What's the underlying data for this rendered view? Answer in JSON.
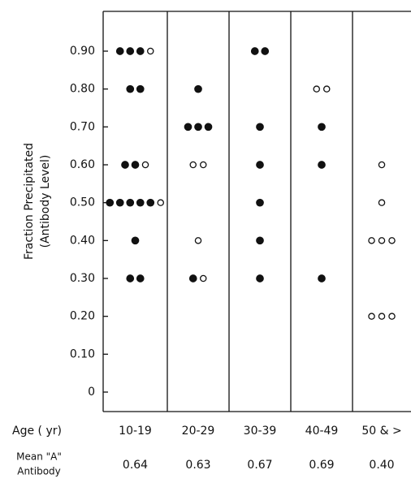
{
  "chart_data": {
    "type": "dot",
    "y_label": [
      "Fraction Precipitated",
      "(Antibody Level)"
    ],
    "x_label": "Age ( yr)",
    "categories": [
      "10-19",
      "20-29",
      "30-39",
      "40-49",
      "50 & >"
    ],
    "ylim": [
      0,
      1.0
    ],
    "yticks": [
      0,
      {
        "value": 0.1,
        "label": "0.10"
      },
      {
        "value": 0.2,
        "label": "0.20"
      },
      {
        "value": 0.3,
        "label": "0.30"
      },
      {
        "value": 0.4,
        "label": "0.40"
      },
      {
        "value": 0.5,
        "label": "0.50"
      },
      {
        "value": 0.6,
        "label": "0.60"
      },
      {
        "value": 0.7,
        "label": "0.70"
      },
      {
        "value": 0.8,
        "label": "0.80"
      },
      {
        "value": 0.9,
        "label": "0.90"
      }
    ],
    "series": [
      {
        "color": "#111111",
        "filled": true,
        "values": [
          [
            0.9,
            0.9,
            0.9,
            0.8,
            0.8,
            0.6,
            0.6,
            0.5,
            0.5,
            0.5,
            0.5,
            0.5,
            0.4,
            0.3,
            0.3
          ],
          [
            0.8,
            0.7,
            0.7,
            0.7,
            0.3
          ],
          [
            0.9,
            0.9,
            0.7,
            0.6,
            0.5,
            0.4,
            0.3
          ],
          [
            0.7,
            0.6,
            0.3
          ],
          []
        ]
      },
      {
        "color": "#111111",
        "filled": false,
        "values": [
          [
            0.9,
            0.6,
            0.5
          ],
          [
            0.6,
            0.6,
            0.4,
            0.3
          ],
          [],
          [
            0.8,
            0.8
          ],
          [
            0.6,
            0.5,
            0.4,
            0.4,
            0.4,
            0.2,
            0.2,
            0.2
          ]
        ]
      }
    ],
    "mean_label": [
      "Mean \"A\"",
      "Antibody"
    ],
    "means": [
      "0.64",
      "0.63",
      "0.67",
      "0.69",
      "0.40"
    ]
  }
}
